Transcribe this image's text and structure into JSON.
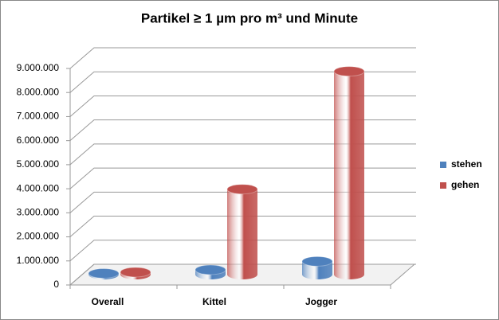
{
  "chart_data": {
    "type": "bar3d",
    "title": "Partikel ≥ 1 µm pro m³ und Minute",
    "categories": [
      "Overall",
      "Kittel",
      "Jogger"
    ],
    "series": [
      {
        "name": "stehen",
        "color": "#4f81bd",
        "values": [
          50000,
          200000,
          550000
        ]
      },
      {
        "name": "gehen",
        "color": "#c0504d",
        "values": [
          100000,
          3550000,
          8450000
        ]
      }
    ],
    "ylim": [
      0,
      9000000
    ],
    "yticks": [
      0,
      {
        "value": 1000000,
        "label": "1.000.000"
      },
      {
        "value": 2000000,
        "label": "2.000.000"
      },
      {
        "value": 3000000,
        "label": "3.000.000"
      },
      {
        "value": 4000000,
        "label": "4.000.000"
      },
      {
        "value": 5000000,
        "label": "5.000.000"
      },
      {
        "value": 6000000,
        "label": "6.000.000"
      },
      {
        "value": 7000000,
        "label": "7.000.000"
      },
      {
        "value": 8000000,
        "label": "8.000.000"
      },
      {
        "value": 9000000,
        "label": "9.000.000"
      }
    ],
    "grid": true,
    "legend": "right"
  }
}
